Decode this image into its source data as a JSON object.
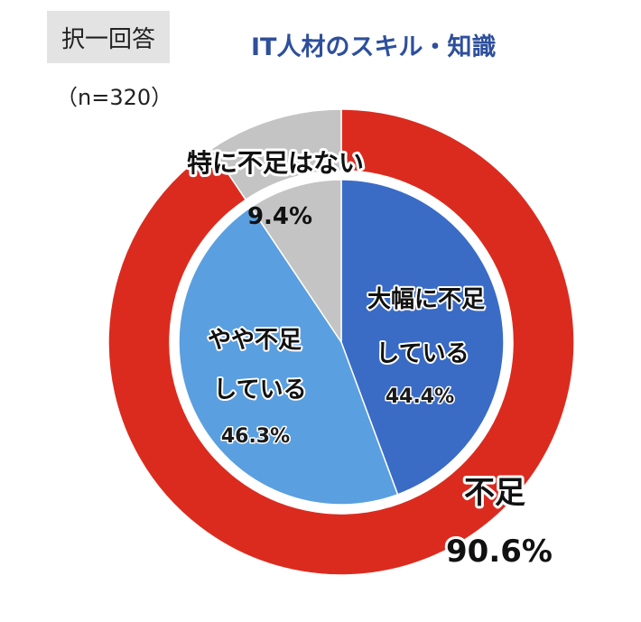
{
  "header": {
    "badge": "択一回答",
    "sample_size": "（n=320）",
    "title": "IT人材のスキル・知識"
  },
  "colors": {
    "outer_insufficient": "#db2b1f",
    "outer_none": "#c4c4c4",
    "inner_large": "#3a6cc6",
    "inner_somewhat": "#5a9fe0",
    "inner_none": "#c4c4c4",
    "title": "#2d4f9c"
  },
  "chart_data": [
    {
      "type": "pie",
      "ring": "outer",
      "slices": [
        {
          "label": "不足",
          "value": 90.6,
          "value_label": "90.6%",
          "color_key": "outer_insufficient"
        },
        {
          "label": "特に不足はない",
          "value": 9.4,
          "value_label": "9.4%",
          "color_key": "outer_none"
        }
      ]
    },
    {
      "type": "pie",
      "ring": "inner",
      "slices": [
        {
          "label_lines": [
            "大幅に不足",
            "している"
          ],
          "value": 44.4,
          "value_label": "44.4%",
          "color_key": "inner_large"
        },
        {
          "label_lines": [
            "やや不足",
            "している"
          ],
          "value": 46.3,
          "value_label": "46.3%",
          "color_key": "inner_somewhat"
        },
        {
          "label_lines": [],
          "value": 9.4,
          "value_label": "",
          "color_key": "inner_none"
        }
      ]
    }
  ]
}
